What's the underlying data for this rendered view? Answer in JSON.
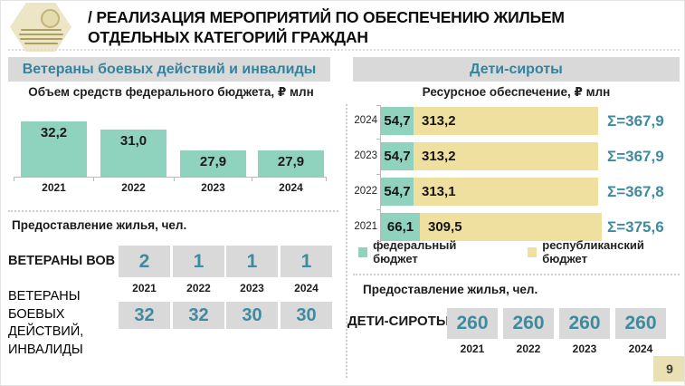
{
  "slide": {
    "title_line1": "/ РЕАЛИЗАЦИЯ МЕРОПРИЯТИЙ ПО ОБЕСПЕЧЕНИЮ ЖИЛЬЕМ",
    "title_line2": "ОТДЕЛЬНЫХ КАТЕГОРИЙ ГРАЖДАН",
    "page_number": "9"
  },
  "colors": {
    "teal_text": "#34839d",
    "number_teal": "#3e8ba0",
    "mint_green": "#8fd3be",
    "yellow": "#f0e09f",
    "band_gray": "#d9d9d9",
    "beige": "#e9e0b4"
  },
  "left_section": {
    "header": "Ветераны боевых действий и инвалиды",
    "chart_title": "Объем средств федерального бюджета, ₽ млн",
    "housing_title": "Предоставление жилья, чел.",
    "rows": [
      {
        "label": "ВЕТЕРАНЫ ВОВ",
        "values": [
          "2",
          "1",
          "1",
          "1"
        ]
      },
      {
        "label_lines": [
          "ВЕТЕРАНЫ",
          "БОЕВЫХ",
          "ДЕЙСТВИЙ,",
          "ИНВАЛИДЫ"
        ],
        "values": [
          "32",
          "32",
          "30",
          "30"
        ]
      }
    ],
    "years": [
      "2021",
      "2022",
      "2023",
      "2024"
    ]
  },
  "right_section": {
    "header": "Дети-сироты",
    "chart_title": "Ресурсное обеспечение, ₽ млн",
    "legend": [
      {
        "label": "федеральный бюджет",
        "color": "#8fd3be"
      },
      {
        "label": "республиканский бюджет",
        "color": "#f0e09f"
      }
    ],
    "housing_title": "Предоставление жилья, чел.",
    "category_label": "ДЕТИ-СИРОТЫ",
    "values": [
      "260",
      "260",
      "260",
      "260"
    ],
    "years": [
      "2021",
      "2022",
      "2023",
      "2024"
    ]
  },
  "chart_data": [
    {
      "type": "bar",
      "title": "Объем средств федерального бюджета, ₽ млн",
      "categories": [
        "2021",
        "2022",
        "2023",
        "2024"
      ],
      "values": [
        32.2,
        31.0,
        27.9,
        27.9
      ],
      "value_labels": [
        "32,2",
        "31,0",
        "27,9",
        "27,9"
      ],
      "bar_color": "#8fd3be",
      "ylabel": "₽ млн",
      "grid": false,
      "legend_position": "none"
    },
    {
      "type": "bar",
      "orientation": "horizontal-stacked",
      "title": "Ресурсное обеспечение, ₽ млн",
      "categories": [
        "2024",
        "2023",
        "2022",
        "2021"
      ],
      "series": [
        {
          "name": "федеральный бюджет",
          "color": "#8fd3be",
          "values": [
            54.7,
            54.7,
            54.7,
            66.1
          ],
          "value_labels": [
            "54,7",
            "54,7",
            "54,7",
            "66,1"
          ]
        },
        {
          "name": "республиканский бюджет",
          "color": "#f0e09f",
          "values": [
            313.2,
            313.2,
            313.1,
            309.5
          ],
          "value_labels": [
            "313,2",
            "313,2",
            "313,1",
            "309,5"
          ]
        }
      ],
      "totals": [
        367.9,
        367.9,
        367.8,
        375.6
      ],
      "total_labels": [
        "Σ=367,9",
        "Σ=367,9",
        "Σ=367,8",
        "Σ=375,6"
      ],
      "legend_position": "bottom"
    }
  ]
}
